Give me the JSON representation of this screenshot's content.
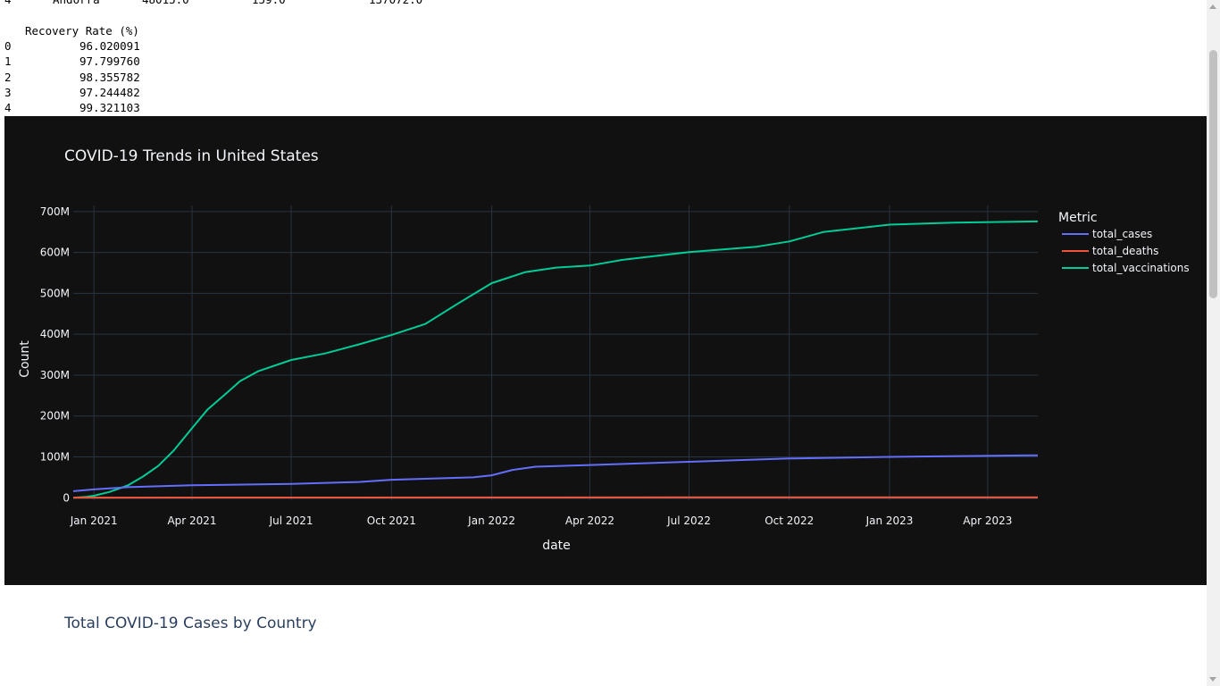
{
  "console": {
    "partial_row": {
      "index": "4",
      "country": "Andorra",
      "c1": "48015.0",
      "c2": "159.0",
      "c3": "137072.0"
    },
    "column_header": "Recovery Rate (%)",
    "rows": [
      {
        "index": "0",
        "value": "96.020091"
      },
      {
        "index": "1",
        "value": "97.799760"
      },
      {
        "index": "2",
        "value": "98.355782"
      },
      {
        "index": "3",
        "value": "97.244482"
      },
      {
        "index": "4",
        "value": "99.321103"
      }
    ]
  },
  "chart_data": {
    "type": "line",
    "title": "COVID-19 Trends in United States",
    "xlabel": "date",
    "ylabel": "Count",
    "legend_title": "Metric",
    "legend_position": "right",
    "grid": true,
    "theme": "dark",
    "xlim": [
      "2020-12-13",
      "2023-05-17"
    ],
    "ylim": [
      -6000000,
      715000000
    ],
    "x_ticks": [
      {
        "value": "2021-01-01",
        "label": "Jan 2021"
      },
      {
        "value": "2021-04-01",
        "label": "Apr 2021"
      },
      {
        "value": "2021-07-01",
        "label": "Jul 2021"
      },
      {
        "value": "2021-10-01",
        "label": "Oct 2021"
      },
      {
        "value": "2022-01-01",
        "label": "Jan 2022"
      },
      {
        "value": "2022-04-01",
        "label": "Apr 2022"
      },
      {
        "value": "2022-07-01",
        "label": "Jul 2022"
      },
      {
        "value": "2022-10-01",
        "label": "Oct 2022"
      },
      {
        "value": "2023-01-01",
        "label": "Jan 2023"
      },
      {
        "value": "2023-04-01",
        "label": "Apr 2023"
      }
    ],
    "y_ticks": [
      {
        "value": 0,
        "label": "0"
      },
      {
        "value": 100000000,
        "label": "100M"
      },
      {
        "value": 200000000,
        "label": "200M"
      },
      {
        "value": 300000000,
        "label": "300M"
      },
      {
        "value": 400000000,
        "label": "400M"
      },
      {
        "value": 500000000,
        "label": "500M"
      },
      {
        "value": 600000000,
        "label": "600M"
      },
      {
        "value": 700000000,
        "label": "700M"
      }
    ],
    "series": [
      {
        "name": "total_cases",
        "color": "#636efa",
        "points": [
          [
            "2020-12-13",
            16000000
          ],
          [
            "2021-01-01",
            20500000
          ],
          [
            "2021-02-01",
            26000000
          ],
          [
            "2021-04-01",
            30500000
          ],
          [
            "2021-07-01",
            34000000
          ],
          [
            "2021-09-01",
            38500000
          ],
          [
            "2021-10-01",
            44000000
          ],
          [
            "2021-12-15",
            50000000
          ],
          [
            "2022-01-01",
            55000000
          ],
          [
            "2022-01-20",
            68000000
          ],
          [
            "2022-02-10",
            76000000
          ],
          [
            "2022-04-01",
            80000000
          ],
          [
            "2022-07-01",
            88000000
          ],
          [
            "2022-10-01",
            96000000
          ],
          [
            "2023-01-01",
            100000000
          ],
          [
            "2023-05-17",
            104000000
          ]
        ]
      },
      {
        "name": "total_deaths",
        "color": "#ef553b",
        "points": [
          [
            "2020-12-13",
            300000
          ],
          [
            "2021-06-01",
            600000
          ],
          [
            "2022-01-01",
            830000
          ],
          [
            "2022-07-01",
            1000000
          ],
          [
            "2023-05-17",
            1120000
          ]
        ]
      },
      {
        "name": "total_vaccinations",
        "color": "#00cc96",
        "points": [
          [
            "2020-12-13",
            0
          ],
          [
            "2020-12-25",
            2000000
          ],
          [
            "2021-01-01",
            5000000
          ],
          [
            "2021-01-15",
            14000000
          ],
          [
            "2021-02-01",
            30000000
          ],
          [
            "2021-02-15",
            52000000
          ],
          [
            "2021-03-01",
            78000000
          ],
          [
            "2021-03-15",
            115000000
          ],
          [
            "2021-04-01",
            170000000
          ],
          [
            "2021-04-15",
            215000000
          ],
          [
            "2021-05-01",
            252000000
          ],
          [
            "2021-05-15",
            285000000
          ],
          [
            "2021-06-01",
            310000000
          ],
          [
            "2021-07-01",
            337000000
          ],
          [
            "2021-08-01",
            353000000
          ],
          [
            "2021-09-01",
            375000000
          ],
          [
            "2021-10-01",
            398000000
          ],
          [
            "2021-11-01",
            425000000
          ],
          [
            "2021-12-01",
            475000000
          ],
          [
            "2022-01-01",
            525000000
          ],
          [
            "2022-02-01",
            552000000
          ],
          [
            "2022-03-01",
            563000000
          ],
          [
            "2022-04-01",
            568000000
          ],
          [
            "2022-05-01",
            582000000
          ],
          [
            "2022-07-01",
            601000000
          ],
          [
            "2022-09-01",
            614000000
          ],
          [
            "2022-10-01",
            627000000
          ],
          [
            "2022-11-01",
            650000000
          ],
          [
            "2023-01-01",
            668000000
          ],
          [
            "2023-03-01",
            673000000
          ],
          [
            "2023-05-17",
            676000000
          ]
        ]
      }
    ]
  },
  "next_chart": {
    "title": "Total COVID-19 Cases by Country"
  }
}
